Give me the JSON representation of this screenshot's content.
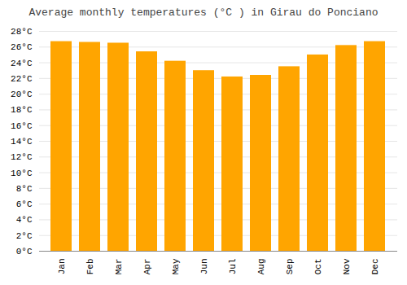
{
  "chart_data": {
    "type": "bar",
    "title": "Average monthly temperatures (°C ) in Girau do Ponciano",
    "categories": [
      "Jan",
      "Feb",
      "Mar",
      "Apr",
      "May",
      "Jun",
      "Jul",
      "Aug",
      "Sep",
      "Oct",
      "Nov",
      "Dec"
    ],
    "values": [
      26.7,
      26.6,
      26.5,
      25.4,
      24.2,
      23.0,
      22.2,
      22.4,
      23.5,
      25.0,
      26.2,
      26.7
    ],
    "color": "#FFA500",
    "ylim": [
      0,
      28
    ],
    "yticks": [
      {
        "value": 0,
        "label": "0°C"
      },
      {
        "value": 2,
        "label": "2°C"
      },
      {
        "value": 4,
        "label": "4°C"
      },
      {
        "value": 6,
        "label": "6°C"
      },
      {
        "value": 8,
        "label": "8°C"
      },
      {
        "value": 10,
        "label": "10°C"
      },
      {
        "value": 12,
        "label": "12°C"
      },
      {
        "value": 14,
        "label": "14°C"
      },
      {
        "value": 16,
        "label": "16°C"
      },
      {
        "value": 18,
        "label": "18°C"
      },
      {
        "value": 20,
        "label": "20°C"
      },
      {
        "value": 22,
        "label": "22°C"
      },
      {
        "value": 24,
        "label": "24°C"
      },
      {
        "value": 26,
        "label": "26°C"
      },
      {
        "value": 28,
        "label": "28°C"
      }
    ],
    "grid": true
  }
}
